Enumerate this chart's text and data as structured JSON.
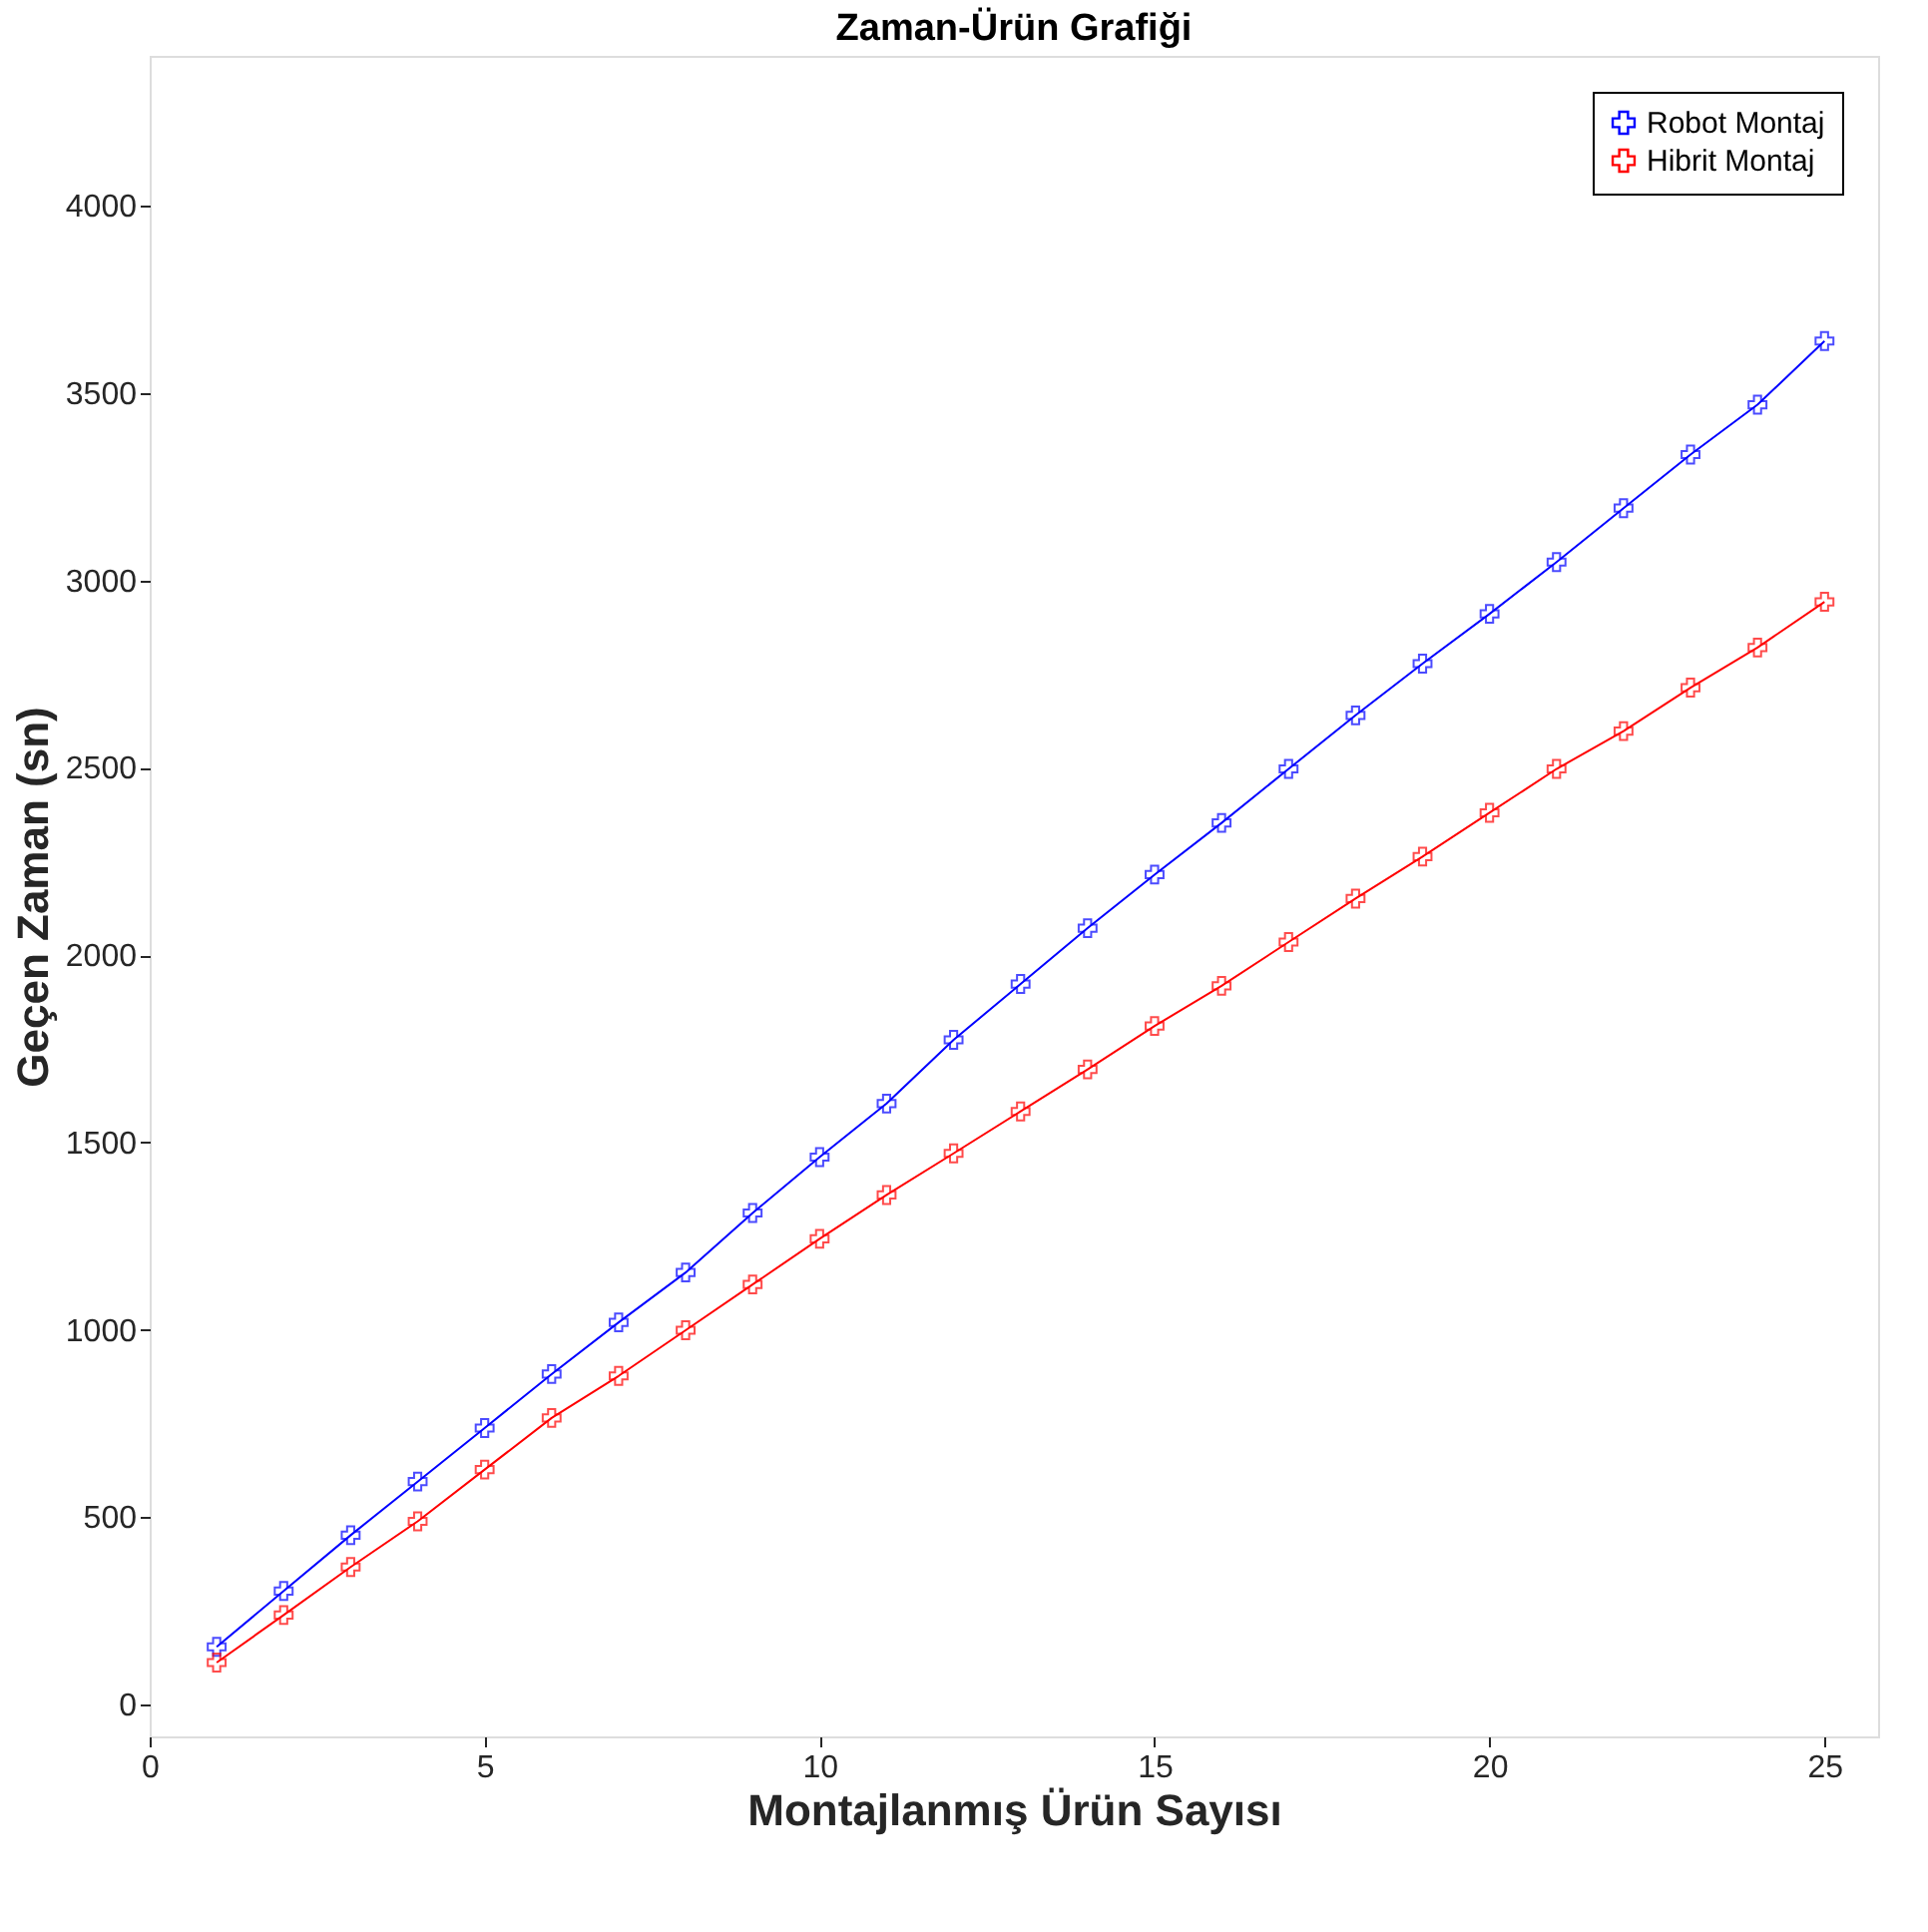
{
  "chart_data": {
    "type": "line",
    "title": "Zaman-Ürün Grafiği",
    "xlabel": "Montajlanmış Ürün Sayısı",
    "ylabel": "Geçen Zaman (sn)",
    "x": [
      1,
      2,
      3,
      4,
      5,
      6,
      7,
      8,
      9,
      10,
      11,
      12,
      13,
      14,
      15,
      16,
      17,
      18,
      19,
      20,
      21,
      22,
      23,
      24,
      25
    ],
    "series": [
      {
        "name": "Robot Montaj",
        "color": "#0000ff",
        "values": [
          154,
          303,
          452,
          595,
          738,
          882,
          1020,
          1153,
          1312,
          1461,
          1604,
          1774,
          1923,
          2072,
          2215,
          2353,
          2497,
          2640,
          2778,
          2911,
          3049,
          3193,
          3336,
          3469,
          3639
        ]
      },
      {
        "name": "Hibrit Montaj",
        "color": "#ff0000",
        "values": [
          112,
          239,
          367,
          489,
          627,
          765,
          877,
          999,
          1121,
          1243,
          1360,
          1471,
          1583,
          1695,
          1811,
          1918,
          2035,
          2151,
          2263,
          2380,
          2497,
          2598,
          2714,
          2821,
          2943
        ]
      }
    ],
    "xlim": [
      0,
      25.8
    ],
    "ylim": [
      -85,
      4400
    ],
    "xticks": [
      0,
      5,
      10,
      15,
      20,
      25
    ],
    "yticks": [
      0,
      500,
      1000,
      1500,
      2000,
      2500,
      3000,
      3500,
      4000
    ],
    "grid": false,
    "legend": "top right",
    "marker": "cross",
    "line_style": "solid"
  }
}
